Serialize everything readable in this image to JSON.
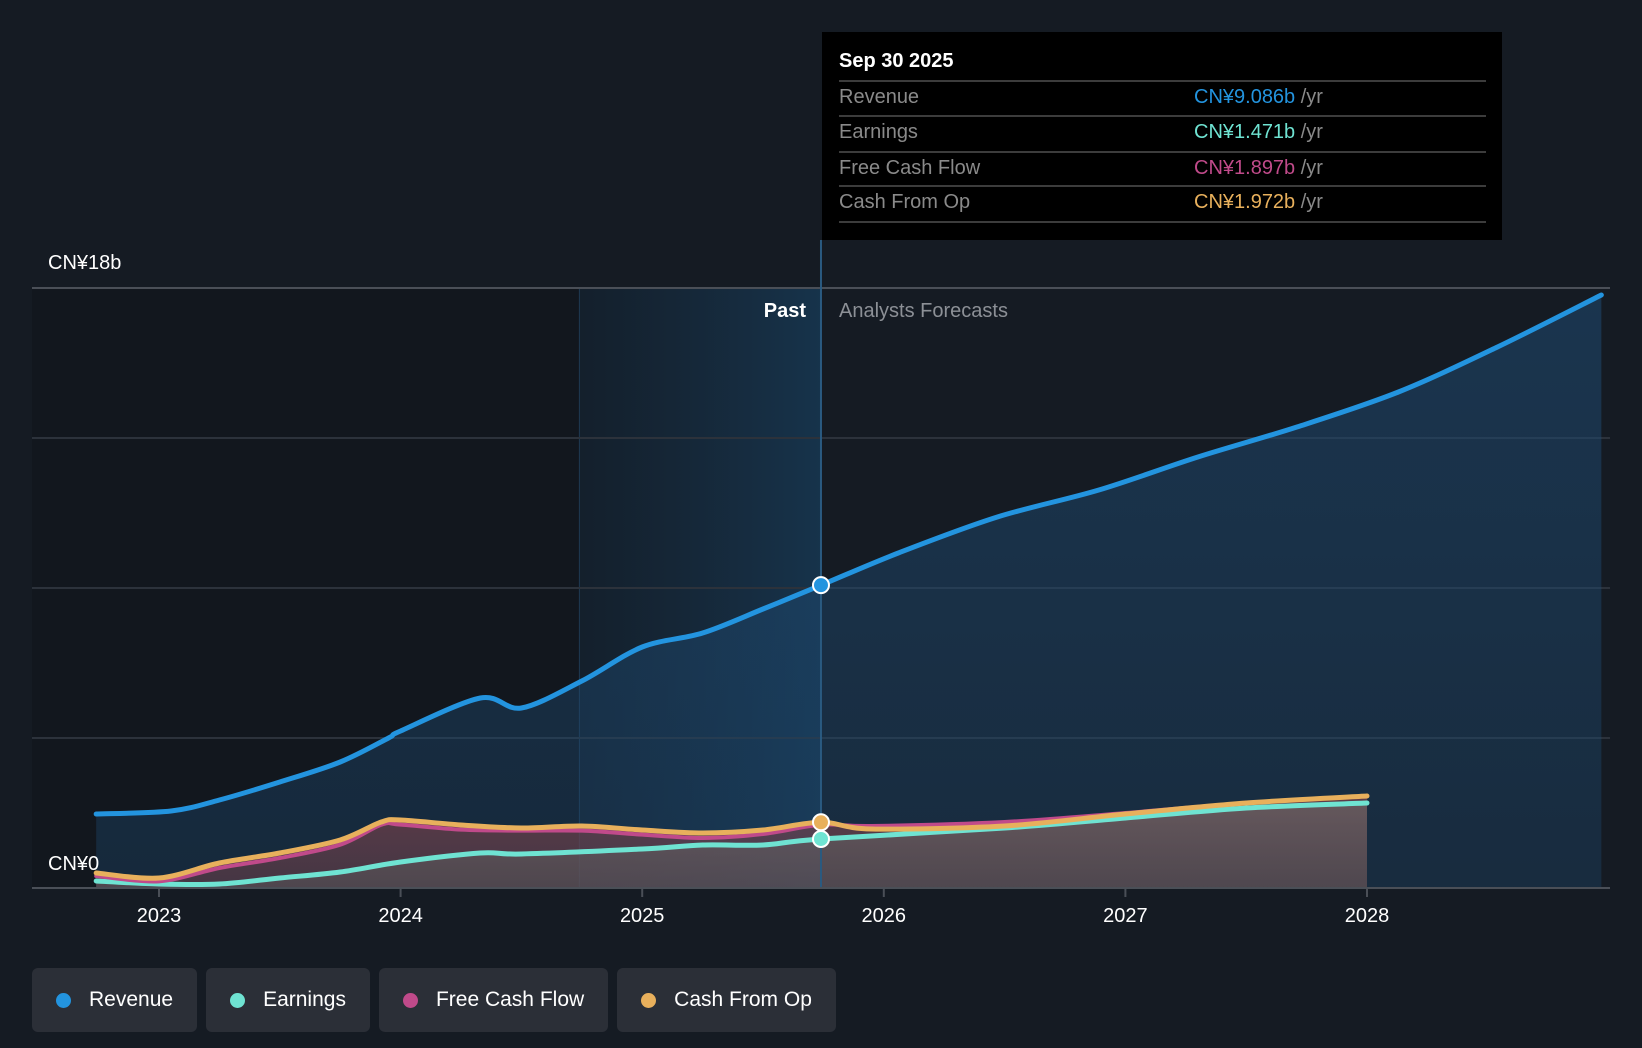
{
  "chart_data": {
    "type": "area",
    "title": "",
    "ylabel": "",
    "xlabel": "",
    "y_unit": "CN¥ billions",
    "ylim": [
      0,
      18
    ],
    "xlim": [
      2022.54,
      2028.97
    ],
    "y_tick_labels": {
      "top": "CN¥18b",
      "bottom": "CN¥0"
    },
    "gridlines_b": [
      0,
      4.5,
      9,
      13.5,
      18
    ],
    "x_ticks": [
      2023,
      2024,
      2025,
      2026,
      2027,
      2028
    ],
    "x_tick_labels": [
      "2023",
      "2024",
      "2025",
      "2026",
      "2027",
      "2028"
    ],
    "past_region_start": 2024.74,
    "divider_date": 2025.74,
    "region_labels": {
      "past": "Past",
      "forecast": "Analysts Forecasts"
    },
    "legend_placement": "bottom-left",
    "series": [
      {
        "name": "Revenue",
        "color": "#2394df",
        "x": [
          2022.74,
          2023.05,
          2023.25,
          2023.5,
          2023.75,
          2023.95,
          2024.0,
          2024.33,
          2024.5,
          2024.75,
          2025.0,
          2025.25,
          2025.5,
          2025.74,
          2026.06,
          2026.47,
          2026.89,
          2027.3,
          2027.71,
          2028.13,
          2028.54,
          2028.97
        ],
        "values": [
          2.22,
          2.31,
          2.64,
          3.18,
          3.78,
          4.5,
          4.71,
          5.7,
          5.4,
          6.21,
          7.23,
          7.65,
          8.37,
          9.086,
          10.05,
          11.13,
          11.94,
          12.93,
          13.83,
          14.88,
          16.23,
          17.79
        ]
      },
      {
        "name": "Earnings",
        "color": "#6fe3d2",
        "x": [
          2022.74,
          2023.0,
          2023.25,
          2023.5,
          2023.75,
          2024.0,
          2024.33,
          2024.5,
          2025.0,
          2025.25,
          2025.5,
          2025.74,
          2026.5,
          2027.0,
          2027.5,
          2028.0
        ],
        "values": [
          0.21,
          0.12,
          0.12,
          0.3,
          0.48,
          0.78,
          1.05,
          1.02,
          1.17,
          1.29,
          1.29,
          1.471,
          1.8,
          2.1,
          2.4,
          2.55
        ]
      },
      {
        "name": "Free Cash Flow",
        "color": "#c04a8a",
        "x": [
          2022.74,
          2023.0,
          2023.25,
          2023.5,
          2023.75,
          2023.92,
          2024.0,
          2024.25,
          2024.5,
          2024.75,
          2025.0,
          2025.25,
          2025.5,
          2025.74,
          2025.95,
          2026.5,
          2027.0,
          2027.5,
          2028.0
        ],
        "values": [
          0.36,
          0.2,
          0.6,
          0.9,
          1.3,
          1.9,
          1.9,
          1.75,
          1.72,
          1.72,
          1.6,
          1.5,
          1.62,
          1.897,
          1.86,
          1.98,
          2.25,
          2.55,
          2.76
        ]
      },
      {
        "name": "Cash From Op",
        "color": "#e8b05c",
        "x": [
          2022.74,
          2023.0,
          2023.25,
          2023.5,
          2023.75,
          2023.92,
          2024.0,
          2024.25,
          2024.5,
          2024.75,
          2025.0,
          2025.25,
          2025.5,
          2025.74,
          2025.95,
          2026.5,
          2027.0,
          2027.5,
          2028.0
        ],
        "values": [
          0.45,
          0.3,
          0.75,
          1.05,
          1.44,
          1.98,
          2.04,
          1.89,
          1.8,
          1.86,
          1.74,
          1.65,
          1.74,
          1.972,
          1.77,
          1.86,
          2.22,
          2.55,
          2.76
        ]
      }
    ]
  },
  "tooltip": {
    "date": "Sep 30 2025",
    "rows": [
      {
        "label": "Revenue",
        "value": "CN¥9.086b",
        "unit": "/yr",
        "color": "#2394df"
      },
      {
        "label": "Earnings",
        "value": "CN¥1.471b",
        "unit": "/yr",
        "color": "#6fe3d2"
      },
      {
        "label": "Free Cash Flow",
        "value": "CN¥1.897b",
        "unit": "/yr",
        "color": "#c04a8a"
      },
      {
        "label": "Cash From Op",
        "value": "CN¥1.972b",
        "unit": "/yr",
        "color": "#e8b05c"
      }
    ]
  },
  "legend": [
    {
      "label": "Revenue",
      "color": "#2394df"
    },
    {
      "label": "Earnings",
      "color": "#6fe3d2"
    },
    {
      "label": "Free Cash Flow",
      "color": "#c04a8a"
    },
    {
      "label": "Cash From Op",
      "color": "#e8b05c"
    }
  ]
}
